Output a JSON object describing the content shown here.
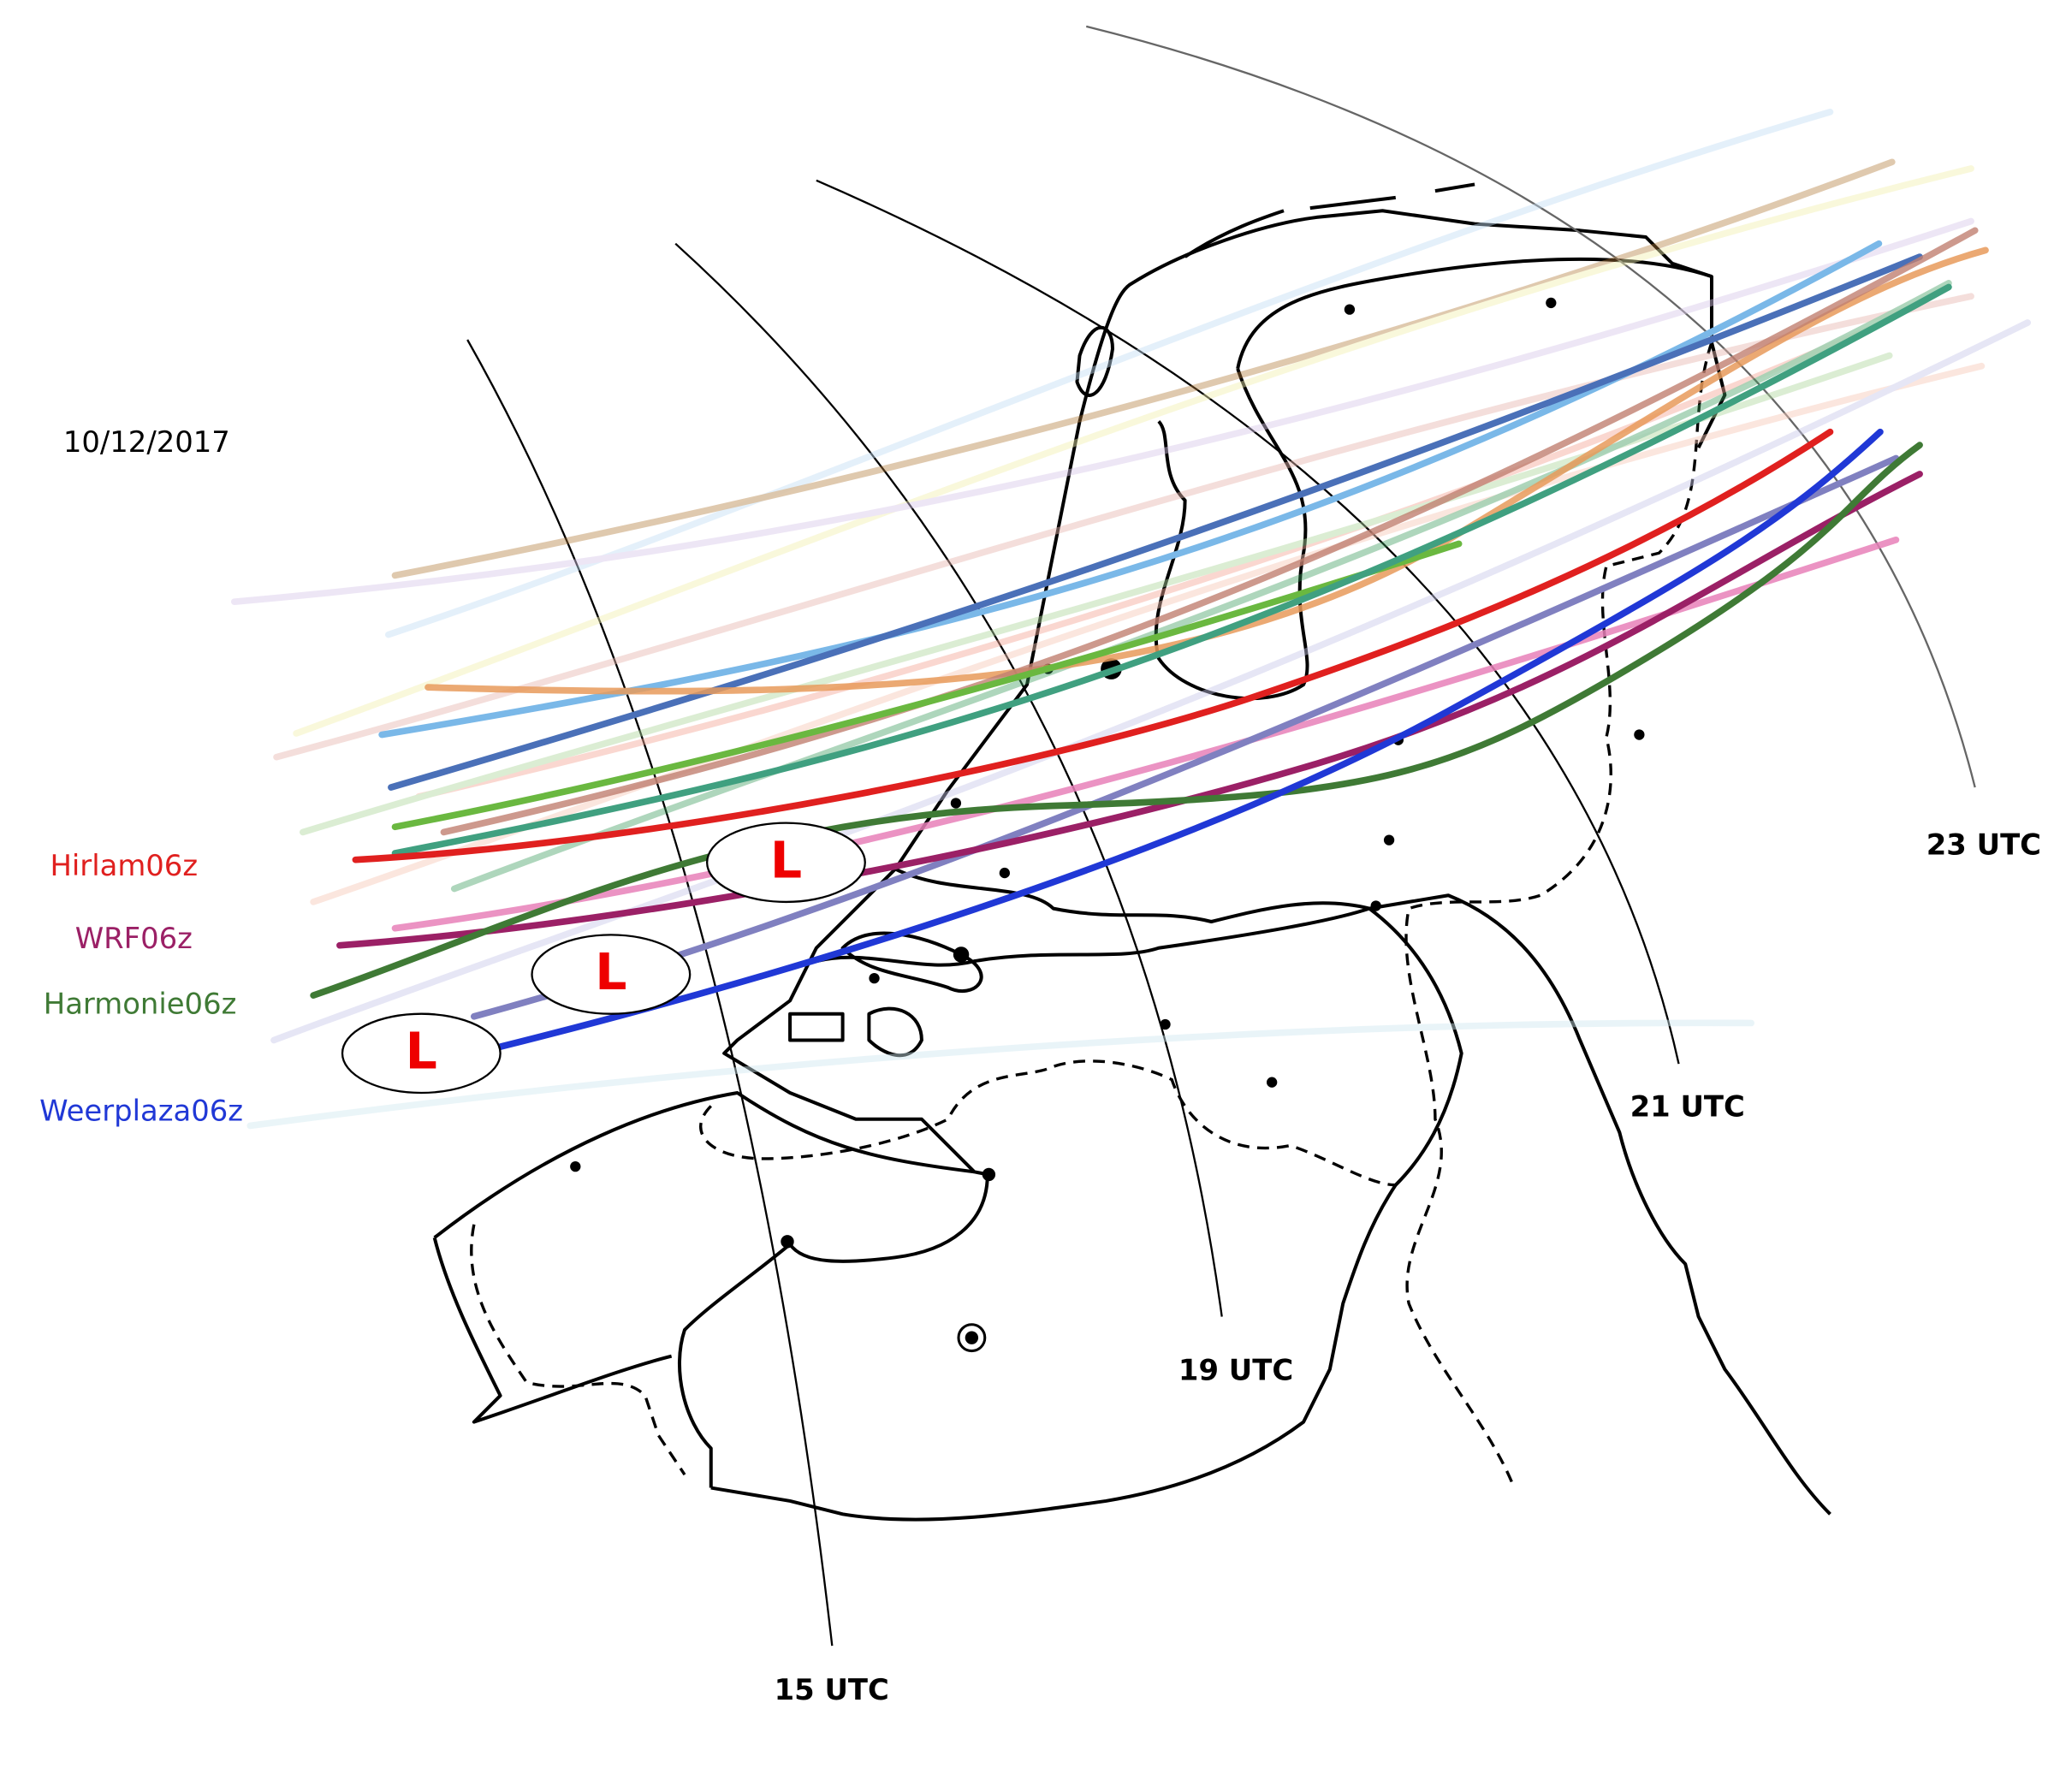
{
  "date": "10/12/2017",
  "models": [
    {
      "label": "Hirlam06z",
      "color": "#e0201f"
    },
    {
      "label": "WRF06z",
      "color": "#9b2066"
    },
    {
      "label": "Harmonie06z",
      "color": "#3f7a35"
    },
    {
      "label": "Weerplaza06z",
      "color": "#2038d6"
    }
  ],
  "isochrones": [
    {
      "label": "15 UTC"
    },
    {
      "label": "19 UTC"
    },
    {
      "label": "21 UTC"
    },
    {
      "label": "23 UTC"
    }
  ],
  "lows": [
    {
      "label": "L"
    },
    {
      "label": "L"
    },
    {
      "label": "L"
    }
  ]
}
